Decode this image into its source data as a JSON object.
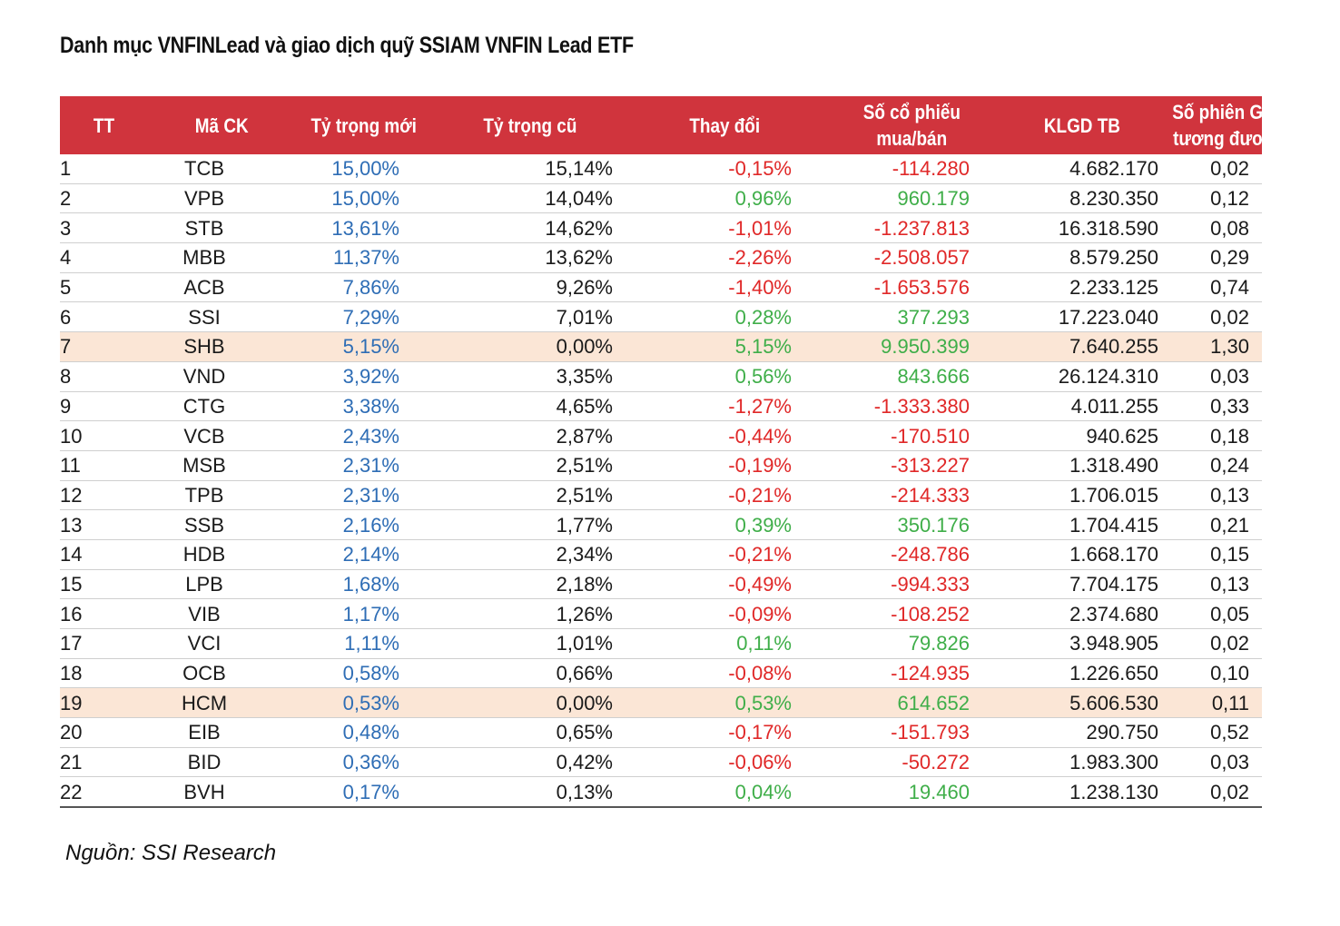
{
  "title": "Danh mục VNFINLead và giao dịch quỹ SSIAM VNFIN Lead ETF",
  "colors": {
    "header_bg": "#d0343d",
    "new_weight": "#2e6db5",
    "negative": "#e02828",
    "positive": "#3fae49",
    "highlight_row": "#fbe6d6"
  },
  "table": {
    "headers": {
      "tt": "TT",
      "ma_ck": "Mã CK",
      "ty_trong_moi": "Tỷ trọng mới",
      "ty_trong_cu": "Tỷ trọng cũ",
      "thay_doi": "Thay đổi",
      "so_co_phieu_line1": "Số cổ phiếu",
      "so_co_phieu_line2": "mua/bán",
      "klgd_tb": "KLGD TB",
      "so_phien_line1": "Số phiên GD",
      "so_phien_line2": "tương đương"
    },
    "rows": [
      {
        "tt": "1",
        "ma": "TCB",
        "new": "15,00%",
        "old": "15,14%",
        "chg": "-0,15%",
        "qty": "-114.280",
        "klgd": "4.682.170",
        "ses": "0,02",
        "sign": "neg",
        "highlight": false
      },
      {
        "tt": "2",
        "ma": "VPB",
        "new": "15,00%",
        "old": "14,04%",
        "chg": "0,96%",
        "qty": "960.179",
        "klgd": "8.230.350",
        "ses": "0,12",
        "sign": "pos",
        "highlight": false
      },
      {
        "tt": "3",
        "ma": "STB",
        "new": "13,61%",
        "old": "14,62%",
        "chg": "-1,01%",
        "qty": "-1.237.813",
        "klgd": "16.318.590",
        "ses": "0,08",
        "sign": "neg",
        "highlight": false
      },
      {
        "tt": "4",
        "ma": "MBB",
        "new": "11,37%",
        "old": "13,62%",
        "chg": "-2,26%",
        "qty": "-2.508.057",
        "klgd": "8.579.250",
        "ses": "0,29",
        "sign": "neg",
        "highlight": false
      },
      {
        "tt": "5",
        "ma": "ACB",
        "new": "7,86%",
        "old": "9,26%",
        "chg": "-1,40%",
        "qty": "-1.653.576",
        "klgd": "2.233.125",
        "ses": "0,74",
        "sign": "neg",
        "highlight": false
      },
      {
        "tt": "6",
        "ma": "SSI",
        "new": "7,29%",
        "old": "7,01%",
        "chg": "0,28%",
        "qty": "377.293",
        "klgd": "17.223.040",
        "ses": "0,02",
        "sign": "pos",
        "highlight": false
      },
      {
        "tt": "7",
        "ma": "SHB",
        "new": "5,15%",
        "old": "0,00%",
        "chg": "5,15%",
        "qty": "9.950.399",
        "klgd": "7.640.255",
        "ses": "1,30",
        "sign": "pos",
        "highlight": true
      },
      {
        "tt": "8",
        "ma": "VND",
        "new": "3,92%",
        "old": "3,35%",
        "chg": "0,56%",
        "qty": "843.666",
        "klgd": "26.124.310",
        "ses": "0,03",
        "sign": "pos",
        "highlight": false
      },
      {
        "tt": "9",
        "ma": "CTG",
        "new": "3,38%",
        "old": "4,65%",
        "chg": "-1,27%",
        "qty": "-1.333.380",
        "klgd": "4.011.255",
        "ses": "0,33",
        "sign": "neg",
        "highlight": false
      },
      {
        "tt": "10",
        "ma": "VCB",
        "new": "2,43%",
        "old": "2,87%",
        "chg": "-0,44%",
        "qty": "-170.510",
        "klgd": "940.625",
        "ses": "0,18",
        "sign": "neg",
        "highlight": false
      },
      {
        "tt": "11",
        "ma": "MSB",
        "new": "2,31%",
        "old": "2,51%",
        "chg": "-0,19%",
        "qty": "-313.227",
        "klgd": "1.318.490",
        "ses": "0,24",
        "sign": "neg",
        "highlight": false
      },
      {
        "tt": "12",
        "ma": "TPB",
        "new": "2,31%",
        "old": "2,51%",
        "chg": "-0,21%",
        "qty": "-214.333",
        "klgd": "1.706.015",
        "ses": "0,13",
        "sign": "neg",
        "highlight": false
      },
      {
        "tt": "13",
        "ma": "SSB",
        "new": "2,16%",
        "old": "1,77%",
        "chg": "0,39%",
        "qty": "350.176",
        "klgd": "1.704.415",
        "ses": "0,21",
        "sign": "pos",
        "highlight": false
      },
      {
        "tt": "14",
        "ma": "HDB",
        "new": "2,14%",
        "old": "2,34%",
        "chg": "-0,21%",
        "qty": "-248.786",
        "klgd": "1.668.170",
        "ses": "0,15",
        "sign": "neg",
        "highlight": false
      },
      {
        "tt": "15",
        "ma": "LPB",
        "new": "1,68%",
        "old": "2,18%",
        "chg": "-0,49%",
        "qty": "-994.333",
        "klgd": "7.704.175",
        "ses": "0,13",
        "sign": "neg",
        "highlight": false
      },
      {
        "tt": "16",
        "ma": "VIB",
        "new": "1,17%",
        "old": "1,26%",
        "chg": "-0,09%",
        "qty": "-108.252",
        "klgd": "2.374.680",
        "ses": "0,05",
        "sign": "neg",
        "highlight": false
      },
      {
        "tt": "17",
        "ma": "VCI",
        "new": "1,11%",
        "old": "1,01%",
        "chg": "0,11%",
        "qty": "79.826",
        "klgd": "3.948.905",
        "ses": "0,02",
        "sign": "pos",
        "highlight": false
      },
      {
        "tt": "18",
        "ma": "OCB",
        "new": "0,58%",
        "old": "0,66%",
        "chg": "-0,08%",
        "qty": "-124.935",
        "klgd": "1.226.650",
        "ses": "0,10",
        "sign": "neg",
        "highlight": false
      },
      {
        "tt": "19",
        "ma": "HCM",
        "new": "0,53%",
        "old": "0,00%",
        "chg": "0,53%",
        "qty": "614.652",
        "klgd": "5.606.530",
        "ses": "0,11",
        "sign": "pos",
        "highlight": true
      },
      {
        "tt": "20",
        "ma": "EIB",
        "new": "0,48%",
        "old": "0,65%",
        "chg": "-0,17%",
        "qty": "-151.793",
        "klgd": "290.750",
        "ses": "0,52",
        "sign": "neg",
        "highlight": false
      },
      {
        "tt": "21",
        "ma": "BID",
        "new": "0,36%",
        "old": "0,42%",
        "chg": "-0,06%",
        "qty": "-50.272",
        "klgd": "1.983.300",
        "ses": "0,03",
        "sign": "neg",
        "highlight": false
      },
      {
        "tt": "22",
        "ma": "BVH",
        "new": "0,17%",
        "old": "0,13%",
        "chg": "0,04%",
        "qty": "19.460",
        "klgd": "1.238.130",
        "ses": "0,02",
        "sign": "pos",
        "highlight": false
      }
    ]
  },
  "source": "Nguồn: SSI Research"
}
